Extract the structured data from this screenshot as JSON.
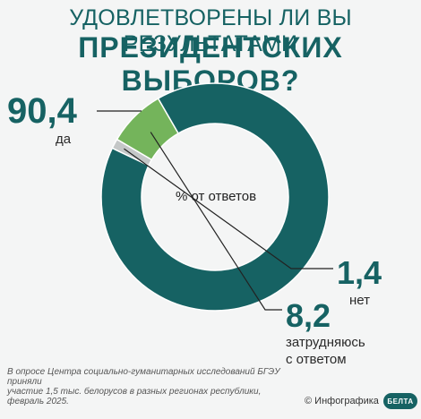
{
  "header": {
    "line1": "УДОВЛЕТВОРЕНЫ ЛИ ВЫ РЕЗУЛЬТАТАМИ",
    "line2": "ПРЕЗИДЕНТСКИХ ВЫБОРОВ?"
  },
  "chart_data": {
    "type": "pie",
    "variant": "donut",
    "center_label": "% от ответов",
    "slices": [
      {
        "label": "да",
        "value": 90.4,
        "value_text": "90,4",
        "color": "#166263"
      },
      {
        "label": "нет",
        "value": 1.4,
        "value_text": "1,4",
        "color": "#c4c7c7"
      },
      {
        "label_lines": [
          "затрудняюсь",
          "с ответом"
        ],
        "value": 8.2,
        "value_text": "8,2",
        "color": "#74b45b"
      }
    ]
  },
  "footer": {
    "note": "В опросе Центра социально-гуманитарных исследований БГЭУ приняли\nучастие 1,5 тыс. белорусов в разных регионах республики,\nфевраль 2025.",
    "credit": "© Инфографика",
    "logo_text": "БЕЛТА"
  }
}
